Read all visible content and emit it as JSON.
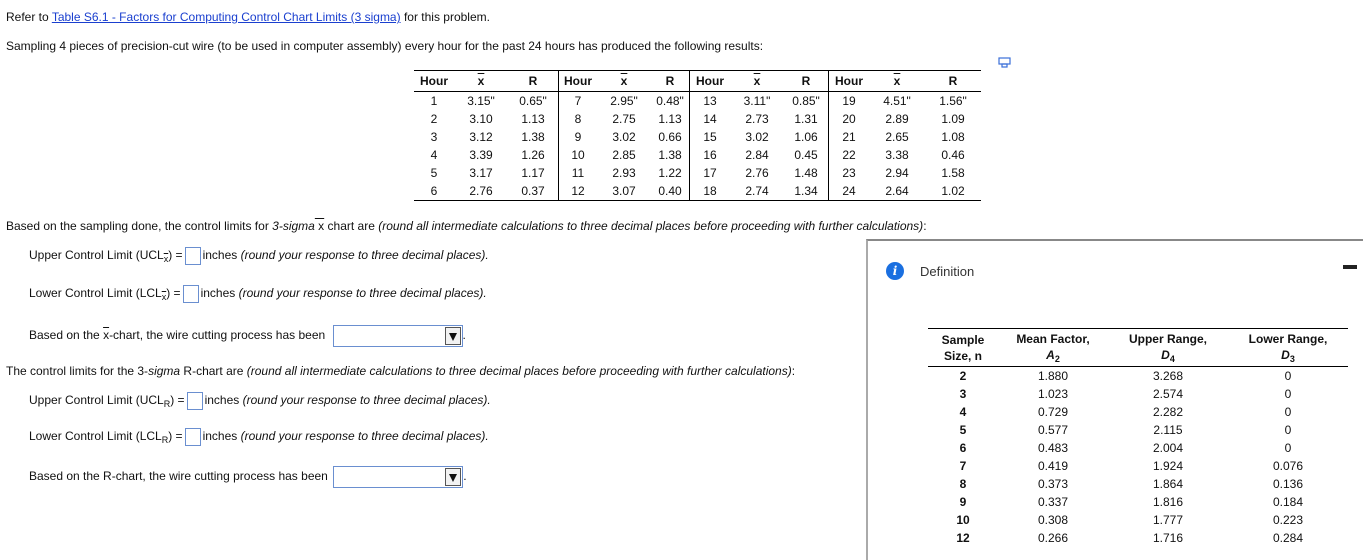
{
  "intro": {
    "refer_prefix": "Refer to ",
    "link_text": "Table S6.1 - Factors for Computing Control Chart Limits (3 sigma)",
    "refer_suffix": " for this problem.",
    "problem": "Sampling 4 pieces of precision-cut wire (to be used in computer assembly) every hour for the past 24 hours has produced the following results:"
  },
  "icons": {
    "copy": "copy-icon",
    "dropdown": "dropdown-arrow-icon",
    "info": "info-icon",
    "minimize": "minimize-icon"
  },
  "data_table": {
    "headers": {
      "hour": "Hour",
      "xbar": "x",
      "r": "R"
    },
    "rows": [
      [
        "1",
        "3.15\"",
        "0.65\"",
        "7",
        "2.95\"",
        "0.48\"",
        "13",
        "3.11\"",
        "0.85\"",
        "19",
        "4.51\"",
        "1.56\""
      ],
      [
        "2",
        "3.10",
        "1.13",
        "8",
        "2.75",
        "1.13",
        "14",
        "2.73",
        "1.31",
        "20",
        "2.89",
        "1.09"
      ],
      [
        "3",
        "3.12",
        "1.38",
        "9",
        "3.02",
        "0.66",
        "15",
        "3.02",
        "1.06",
        "21",
        "2.65",
        "1.08"
      ],
      [
        "4",
        "3.39",
        "1.26",
        "10",
        "2.85",
        "1.38",
        "16",
        "2.84",
        "0.45",
        "22",
        "3.38",
        "0.46"
      ],
      [
        "5",
        "3.17",
        "1.17",
        "11",
        "2.93",
        "1.22",
        "17",
        "2.76",
        "1.48",
        "23",
        "2.94",
        "1.58"
      ],
      [
        "6",
        "2.76",
        "0.37",
        "12",
        "3.07",
        "0.40",
        "18",
        "2.74",
        "1.34",
        "24",
        "2.64",
        "1.02"
      ]
    ]
  },
  "xbar_section": {
    "intro_a": "Based on the sampling done, the control limits for ",
    "intro_b": "3-sigma",
    "intro_c": " x",
    "intro_d": " chart are ",
    "intro_e": "(round all intermediate calculations to three decimal places before proceeding with further calculations)",
    "intro_f": ":",
    "ucl_label": "Upper Control Limit (UCL",
    "lcl_label": "Lower Control Limit (LCL",
    "sub_x": "x",
    "eq": ") =",
    "unit": "inches",
    "round_note": "(round your response to three decimal places).",
    "chart_a": "Based on the ",
    "chart_b": "x",
    "chart_c": "-chart, the wire cutting process has been",
    "dot": "."
  },
  "r_section": {
    "intro_a": "The control limits for the 3-",
    "intro_b": "sigma",
    "intro_c": " R-chart are ",
    "intro_d": "(round all intermediate calculations to three decimal places before proceeding with further calculations)",
    "intro_e": ":",
    "ucl_label": "Upper Control Limit (UCL",
    "lcl_label": "Lower Control Limit (LCL",
    "sub_r": "R",
    "eq": ") =",
    "unit": "inches",
    "round_note": "(round your response to three decimal places).",
    "chart_text": "Based on the R-chart, the wire cutting process has been",
    "dot": "."
  },
  "definition_panel": {
    "title": "Definition",
    "info_glyph": "i",
    "headers": {
      "size_1": "Sample",
      "size_2": "Size, n",
      "a2_1": "Mean Factor,",
      "a2_2": "A",
      "a2_sub": "2",
      "d4_1": "Upper Range,",
      "d4_2": "D",
      "d4_sub": "4",
      "d3_1": "Lower Range,",
      "d3_2": "D",
      "d3_sub": "3"
    },
    "rows": [
      [
        "2",
        "1.880",
        "3.268",
        "0"
      ],
      [
        "3",
        "1.023",
        "2.574",
        "0"
      ],
      [
        "4",
        "0.729",
        "2.282",
        "0"
      ],
      [
        "5",
        "0.577",
        "2.115",
        "0"
      ],
      [
        "6",
        "0.483",
        "2.004",
        "0"
      ],
      [
        "7",
        "0.419",
        "1.924",
        "0.076"
      ],
      [
        "8",
        "0.373",
        "1.864",
        "0.136"
      ],
      [
        "9",
        "0.337",
        "1.816",
        "0.184"
      ],
      [
        "10",
        "0.308",
        "1.777",
        "0.223"
      ],
      [
        "12",
        "0.266",
        "1.716",
        "0.284"
      ]
    ]
  }
}
